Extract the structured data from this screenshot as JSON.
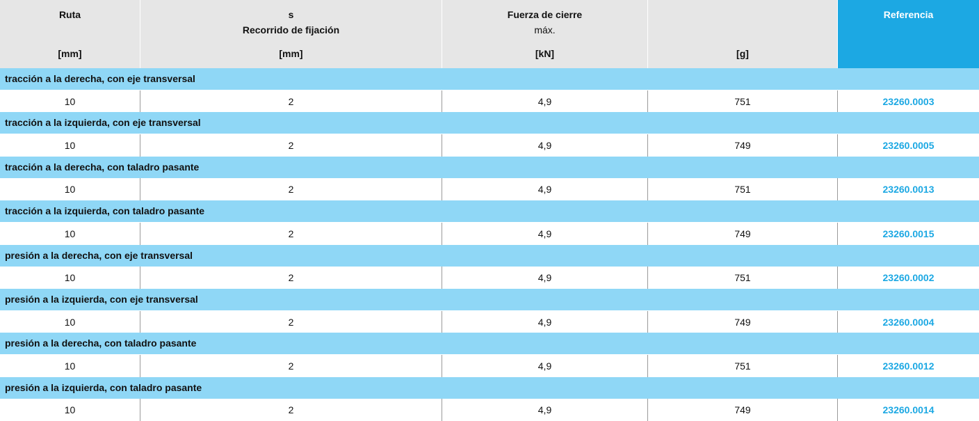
{
  "table": {
    "header": [
      {
        "top": "Ruta",
        "unit": "[mm]"
      },
      {
        "top": "s",
        "subtitle": "Recorrido de fijación",
        "unit": "[mm]"
      },
      {
        "top": "Fuerza de cierre",
        "note": "máx.",
        "unit": "[kN]"
      },
      {
        "unit": "[g]"
      },
      {
        "top": "Referencia"
      }
    ],
    "groups": [
      {
        "label": "tracción a la derecha, con eje transversal",
        "row": [
          10,
          2,
          "4,9",
          751,
          "23260.0003"
        ]
      },
      {
        "label": "tracción a la izquierda, con eje transversal",
        "row": [
          10,
          2,
          "4,9",
          749,
          "23260.0005"
        ]
      },
      {
        "label": "tracción a la derecha, con taladro pasante",
        "row": [
          10,
          2,
          "4,9",
          751,
          "23260.0013"
        ]
      },
      {
        "label": "tracción a la izquierda, con taladro pasante",
        "row": [
          10,
          2,
          "4,9",
          749,
          "23260.0015"
        ]
      },
      {
        "label": "presión a la derecha, con eje transversal",
        "row": [
          10,
          2,
          "4,9",
          751,
          "23260.0002"
        ]
      },
      {
        "label": "presión a la izquierda, con eje transversal",
        "row": [
          10,
          2,
          "4,9",
          749,
          "23260.0004"
        ]
      },
      {
        "label": "presión a la derecha, con taladro pasante",
        "row": [
          10,
          2,
          "4,9",
          751,
          "23260.0012"
        ]
      },
      {
        "label": "presión a la izquierda, con taladro pasante",
        "row": [
          10,
          2,
          "4,9",
          749,
          "23260.0014"
        ]
      }
    ]
  }
}
